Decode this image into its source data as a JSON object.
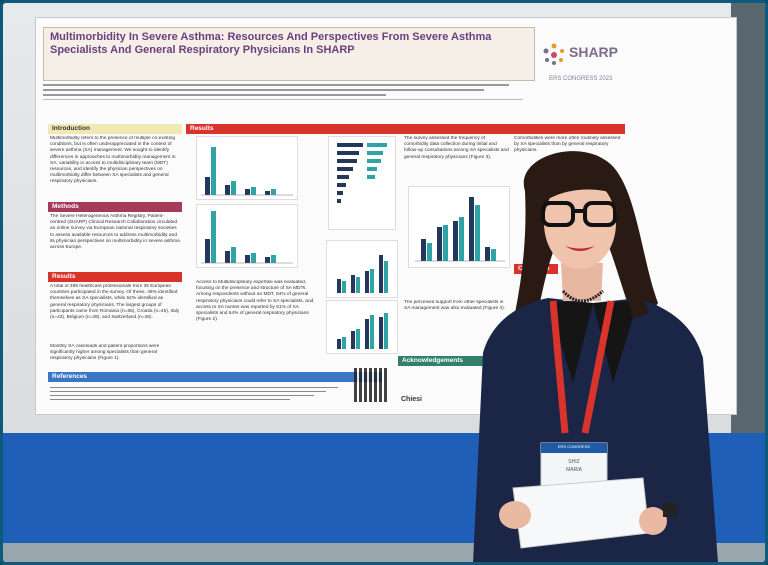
{
  "poster": {
    "title": "Multimorbidity In Severe Asthma: Resources And Perspectives From Severe Asthma Specialists And General Respiratory Physicians In SHARP",
    "logo_text": "SHARP",
    "conference": "ERS CONGRESS 2023",
    "sections": {
      "introduction": "Introduction",
      "methods": "Methods",
      "results_left": "Results",
      "results_main": "Results",
      "references": "References",
      "acknowledgements": "Acknowledgements",
      "conclusion": "Conclusio"
    },
    "intro_text": "Multimorbidity refers to the presence of multiple co-existing conditions, but is often underappreciated in the context of severe asthma (SA) management. We sought to identify differences in approaches to multimorbidity management in SA, variability in access to multidisciplinary team (MDT) resources, and identify the physician perspectives on multimorbidity differ between SA specialists and general respiratory physicians.",
    "methods_text": "The Severe Heterogeneous Asthma Registry, Patient-centred (SHARP) Clinical Research Collaboration circulated an online survey via European national respiratory societies to assess available resources to address multimorbidity and its physician perspectives on multimorbidity in severe asthma across Europe.",
    "results_text_1": "A total of 495 healthcare professionals from 35 European countries participated in the survey. Of these, 48% identified themselves as SA specialists, while 52% identified as general respiratory physicians. The largest groups of participants came from Romania (n=65), Croatia (n=45), Italy (n=43), Belgium (n=39), and Switzerland (n=36).",
    "results_text_2": "Monthly SA caseloads and patient proportions were significantly higher among specialists than general respiratory physicians (Figure 1).",
    "middle_text": "Access to Multidisciplinary expertise was evaluated, focusing on the presence and structure of SA MDTs. Among respondents without an MDT, 64% of general respiratory physicians could refer to SA specialists, and access to SA nurses was reported by 51% of SA specialists and 64% of general respiratory physicians (Figure 2).",
    "right_text": "The survey assessed the frequency of comorbidity data collection during initial and follow-up consultations among SA specialists and general respiratory physicians (Figure 3).",
    "right_text_2": "The perceived support from other specialists in SA management was also evaluated (Figure 4).",
    "far_right_text": "Comorbidities were more often routinely assessed by SA specialists than by general respiratory physicians.",
    "sponsor": "Chiesi",
    "badge_line1": "ERS CONGRESS",
    "badge_line2": "SHIZ",
    "badge_line3": "MARIA"
  },
  "colors": {
    "title_purple": "#6b3e7e",
    "results_red": "#d9342b",
    "methods_maroon": "#a53a59",
    "teal": "#2fa3a6",
    "navy": "#24375c",
    "floor_blue": "#1f5fb8",
    "frame_border": "#0d5a7a"
  }
}
